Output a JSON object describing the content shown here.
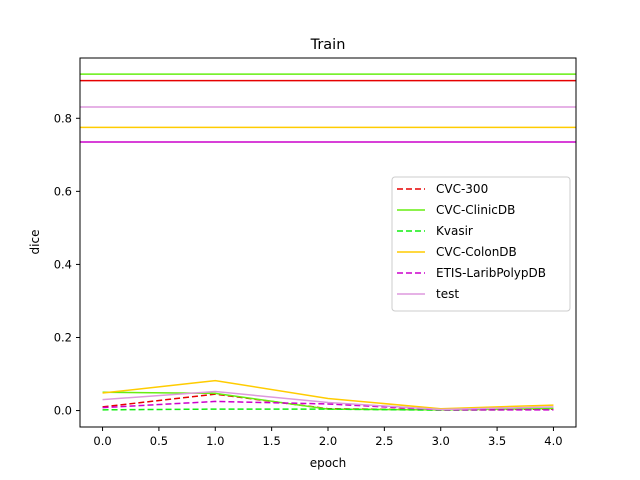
{
  "chart_data": {
    "type": "line",
    "title": "Train",
    "xlabel": "epoch",
    "ylabel": "dice",
    "xlim": [
      -0.2,
      4.2
    ],
    "ylim": [
      -0.045,
      0.965
    ],
    "xticks": [
      0.0,
      0.5,
      1.0,
      1.5,
      2.0,
      2.5,
      3.0,
      3.5,
      4.0
    ],
    "yticks": [
      0.0,
      0.2,
      0.4,
      0.6,
      0.8
    ],
    "xtick_labels": [
      "0.0",
      "0.5",
      "1.0",
      "1.5",
      "2.0",
      "2.5",
      "3.0",
      "3.5",
      "4.0"
    ],
    "ytick_labels": [
      "0.0",
      "0.2",
      "0.4",
      "0.6",
      "0.8"
    ],
    "grid": false,
    "legend_position": "center-right",
    "x": [
      0,
      1,
      2,
      3,
      4
    ],
    "series": [
      {
        "name": "CVC-300",
        "style": "dashed",
        "color": "#e60000",
        "values": [
          0.01,
          0.045,
          0.005,
          0.002,
          0.004
        ]
      },
      {
        "name": "CVC-ClinicDB",
        "style": "solid",
        "color": "#66ee11",
        "values": [
          0.05,
          0.047,
          0.004,
          0.002,
          0.006
        ]
      },
      {
        "name": "Kvasir",
        "style": "dashed",
        "color": "#11ee11",
        "values": [
          0.002,
          0.004,
          0.004,
          0.001,
          0.003
        ]
      },
      {
        "name": "CVC-ColonDB",
        "style": "solid",
        "color": "#ffcc00",
        "values": [
          0.048,
          0.082,
          0.033,
          0.005,
          0.015
        ]
      },
      {
        "name": "ETIS-LaribPolypDB",
        "style": "dashed",
        "color": "#cc00cc",
        "values": [
          0.008,
          0.025,
          0.018,
          0.002,
          0.002
        ]
      },
      {
        "name": "test",
        "style": "solid",
        "color": "#dd99dd",
        "values": [
          0.03,
          0.052,
          0.022,
          0.003,
          0.01
        ]
      }
    ],
    "reference_lines": [
      {
        "y": 0.921,
        "color": "#66ee11"
      },
      {
        "y": 0.903,
        "color": "#e60000"
      },
      {
        "y": 0.831,
        "color": "#dd99dd"
      },
      {
        "y": 0.775,
        "color": "#ffcc00"
      },
      {
        "y": 0.735,
        "color": "#cc00cc"
      }
    ]
  }
}
